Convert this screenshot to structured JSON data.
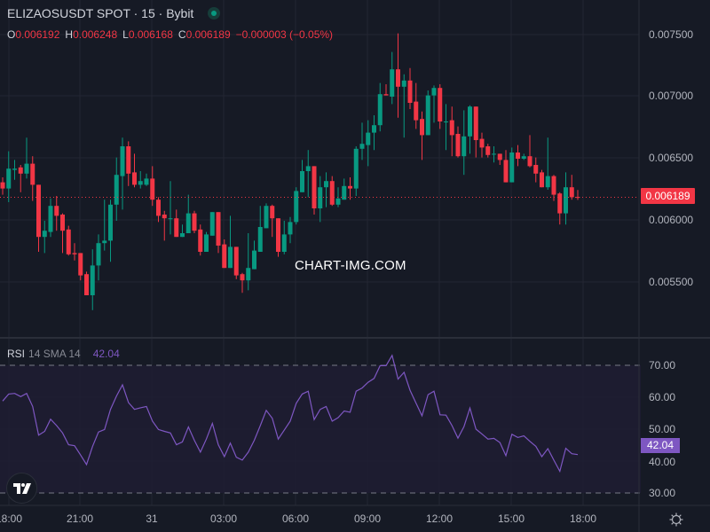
{
  "header": {
    "title": "ELIZAOSUSDT SPOT · 15 · Bybit",
    "status": "market-open",
    "ohlc": {
      "o_label": "O",
      "o": "0.006192",
      "h_label": "H",
      "h": "0.006248",
      "l_label": "L",
      "l": "0.006168",
      "c_label": "C",
      "c": "0.006189",
      "change": "−0.000003 (−0.05%)"
    }
  },
  "watermark": "CHART-IMG.COM",
  "price_axis": {
    "ticks": [
      "0.007500",
      "0.007000",
      "0.006500",
      "0.006000",
      "0.005500"
    ],
    "last_price": "0.006189"
  },
  "rsi": {
    "name": "RSI",
    "params": "14 SMA 14",
    "value": "42.04",
    "ticks": [
      "70.00",
      "60.00",
      "50.00",
      "40.00",
      "30.00"
    ]
  },
  "time_axis": {
    "ticks": [
      "18:00",
      "21:00",
      "31",
      "03:00",
      "06:00",
      "09:00",
      "12:00",
      "15:00",
      "18:00"
    ]
  },
  "colors": {
    "up": "#089981",
    "down": "#f23645",
    "rsi_line": "#7e57c2",
    "background": "#161a25"
  },
  "icons": {
    "logo": "tradingview-logo",
    "settings": "gear-icon"
  },
  "chart_data": [
    {
      "type": "candlestick",
      "title": "ELIZAOSUSDT SPOT · 15 · Bybit",
      "ylim": [
        0.0053,
        0.0077
      ],
      "candles_ohlc": [
        [
          0.00631,
          0.00635,
          0.00621,
          0.00626
        ],
        [
          0.00626,
          0.00656,
          0.00615,
          0.00642
        ],
        [
          0.00641,
          0.00649,
          0.00633,
          0.00642
        ],
        [
          0.00643,
          0.00645,
          0.00623,
          0.00638
        ],
        [
          0.00638,
          0.00667,
          0.00634,
          0.00646
        ],
        [
          0.00646,
          0.00652,
          0.00616,
          0.00629
        ],
        [
          0.00629,
          0.00629,
          0.00575,
          0.00587
        ],
        [
          0.00587,
          0.006,
          0.00574,
          0.00592
        ],
        [
          0.00591,
          0.00618,
          0.00587,
          0.00612
        ],
        [
          0.00612,
          0.0062,
          0.00592,
          0.00604
        ],
        [
          0.00605,
          0.00606,
          0.00574,
          0.00592
        ],
        [
          0.00593,
          0.00596,
          0.00572,
          0.00573
        ],
        [
          0.00574,
          0.00582,
          0.00568,
          0.00573
        ],
        [
          0.00574,
          0.00574,
          0.00552,
          0.00556
        ],
        [
          0.00557,
          0.00559,
          0.0054,
          0.0054
        ],
        [
          0.0054,
          0.00577,
          0.00528,
          0.00564
        ],
        [
          0.00564,
          0.00589,
          0.00552,
          0.00582
        ],
        [
          0.00582,
          0.00617,
          0.00576,
          0.00584
        ],
        [
          0.00584,
          0.00617,
          0.00567,
          0.00613
        ],
        [
          0.00613,
          0.00651,
          0.006,
          0.00637
        ],
        [
          0.00636,
          0.00667,
          0.00609,
          0.0066
        ],
        [
          0.0066,
          0.00664,
          0.00628,
          0.00638
        ],
        [
          0.00639,
          0.00654,
          0.00627,
          0.00629
        ],
        [
          0.00629,
          0.0064,
          0.00626,
          0.00632
        ],
        [
          0.00629,
          0.00638,
          0.00628,
          0.00634
        ],
        [
          0.00634,
          0.00644,
          0.00612,
          0.00617
        ],
        [
          0.00617,
          0.00619,
          0.00599,
          0.00604
        ],
        [
          0.00605,
          0.00608,
          0.00584,
          0.00602
        ],
        [
          0.00602,
          0.00632,
          0.00589,
          0.00602
        ],
        [
          0.00602,
          0.00609,
          0.00587,
          0.00587
        ],
        [
          0.00587,
          0.00597,
          0.00587,
          0.0059
        ],
        [
          0.0059,
          0.00621,
          0.0059,
          0.00606
        ],
        [
          0.00606,
          0.00608,
          0.0059,
          0.00592
        ],
        [
          0.00593,
          0.00597,
          0.00572,
          0.00575
        ],
        [
          0.00575,
          0.00591,
          0.00575,
          0.00589
        ],
        [
          0.00588,
          0.00607,
          0.00588,
          0.00607
        ],
        [
          0.00607,
          0.00607,
          0.00574,
          0.0058
        ],
        [
          0.00581,
          0.00585,
          0.00562,
          0.00562
        ],
        [
          0.00562,
          0.00604,
          0.00562,
          0.00579
        ],
        [
          0.00579,
          0.00579,
          0.00553,
          0.00556
        ],
        [
          0.00557,
          0.00558,
          0.00542,
          0.00552
        ],
        [
          0.00552,
          0.0059,
          0.00544,
          0.00562
        ],
        [
          0.00561,
          0.00584,
          0.00561,
          0.00576
        ],
        [
          0.00575,
          0.00612,
          0.00575,
          0.00595
        ],
        [
          0.00594,
          0.00614,
          0.00594,
          0.00612
        ],
        [
          0.00612,
          0.00613,
          0.00587,
          0.00602
        ],
        [
          0.00602,
          0.00602,
          0.00571,
          0.00575
        ],
        [
          0.00575,
          0.006,
          0.00573,
          0.00589
        ],
        [
          0.00589,
          0.00603,
          0.00582,
          0.00599
        ],
        [
          0.00599,
          0.00627,
          0.00597,
          0.00624
        ],
        [
          0.00623,
          0.00649,
          0.00623,
          0.0064
        ],
        [
          0.0064,
          0.00657,
          0.00619,
          0.00644
        ],
        [
          0.00644,
          0.00644,
          0.00605,
          0.0061
        ],
        [
          0.0061,
          0.00636,
          0.00599,
          0.00627
        ],
        [
          0.00627,
          0.00639,
          0.00611,
          0.00632
        ],
        [
          0.00632,
          0.00636,
          0.00612,
          0.00613
        ],
        [
          0.00613,
          0.00627,
          0.00611,
          0.00618
        ],
        [
          0.00617,
          0.00634,
          0.00617,
          0.00628
        ],
        [
          0.00628,
          0.00635,
          0.00617,
          0.00626
        ],
        [
          0.00626,
          0.0066,
          0.0062,
          0.00658
        ],
        [
          0.00658,
          0.00679,
          0.00649,
          0.00662
        ],
        [
          0.00661,
          0.00681,
          0.00644,
          0.00671
        ],
        [
          0.00671,
          0.00685,
          0.00657,
          0.00677
        ],
        [
          0.00677,
          0.00711,
          0.00672,
          0.00702
        ],
        [
          0.00702,
          0.0071,
          0.00701,
          0.00701
        ],
        [
          0.007,
          0.00736,
          0.00694,
          0.00722
        ],
        [
          0.00722,
          0.00751,
          0.00683,
          0.00708
        ],
        [
          0.00708,
          0.00718,
          0.00667,
          0.00713
        ],
        [
          0.00713,
          0.00723,
          0.0069,
          0.00695
        ],
        [
          0.00696,
          0.00711,
          0.00674,
          0.00681
        ],
        [
          0.00682,
          0.00688,
          0.00649,
          0.00669
        ],
        [
          0.00669,
          0.00705,
          0.00669,
          0.00701
        ],
        [
          0.00701,
          0.00709,
          0.00679,
          0.00707
        ],
        [
          0.00707,
          0.0071,
          0.00674,
          0.0068
        ],
        [
          0.0068,
          0.00694,
          0.00657,
          0.0068
        ],
        [
          0.00681,
          0.00692,
          0.00652,
          0.00669
        ],
        [
          0.0067,
          0.00676,
          0.00651,
          0.00652
        ],
        [
          0.00652,
          0.00689,
          0.00637,
          0.00668
        ],
        [
          0.00668,
          0.00693,
          0.00654,
          0.00692
        ],
        [
          0.00692,
          0.00692,
          0.00651,
          0.00665
        ],
        [
          0.00666,
          0.00671,
          0.00651,
          0.00659
        ],
        [
          0.0066,
          0.00662,
          0.00651,
          0.00653
        ],
        [
          0.00654,
          0.0066,
          0.00647,
          0.00654
        ],
        [
          0.00654,
          0.00654,
          0.00645,
          0.00649
        ],
        [
          0.00649,
          0.00657,
          0.00631,
          0.00631
        ],
        [
          0.00631,
          0.00659,
          0.00631,
          0.00655
        ],
        [
          0.00655,
          0.00661,
          0.00644,
          0.0065
        ],
        [
          0.0065,
          0.00654,
          0.00649,
          0.00652
        ],
        [
          0.00652,
          0.00669,
          0.00643,
          0.00644
        ],
        [
          0.00645,
          0.00651,
          0.00631,
          0.00638
        ],
        [
          0.00639,
          0.00641,
          0.00627,
          0.00627
        ],
        [
          0.00627,
          0.00667,
          0.00625,
          0.00636
        ],
        [
          0.00636,
          0.00637,
          0.00616,
          0.00621
        ],
        [
          0.00622,
          0.00623,
          0.00597,
          0.00606
        ],
        [
          0.00606,
          0.00639,
          0.00597,
          0.00627
        ],
        [
          0.00627,
          0.00637,
          0.00617,
          0.00619
        ],
        [
          0.006192,
          0.006248,
          0.006168,
          0.006189
        ]
      ]
    },
    {
      "type": "line",
      "title": "RSI 14 SMA 14",
      "ylim": [
        25,
        75
      ],
      "bands": [
        30,
        70
      ],
      "values": [
        58.8,
        61.0,
        61.2,
        60.2,
        61.2,
        57.1,
        48.1,
        49.3,
        53.1,
        51.1,
        48.8,
        45.1,
        44.8,
        41.9,
        38.9,
        44.6,
        49.1,
        49.9,
        56.2,
        60.4,
        63.9,
        58.3,
        56.2,
        56.7,
        57.1,
        52.5,
        49.9,
        49.3,
        48.8,
        45.1,
        46.0,
        50.7,
        46.5,
        42.8,
        46.9,
        51.8,
        45.1,
        41.4,
        45.6,
        41.2,
        40.3,
        42.8,
        46.5,
        51.1,
        55.9,
        53.4,
        46.9,
        49.7,
        52.5,
        58.1,
        61.0,
        61.9,
        53.0,
        56.2,
        57.1,
        52.5,
        53.6,
        55.7,
        55.3,
        61.9,
        62.9,
        64.7,
        65.9,
        69.9,
        69.9,
        73.1,
        65.7,
        67.8,
        62.2,
        58.1,
        54.2,
        60.8,
        61.9,
        54.5,
        54.4,
        51.1,
        47.2,
        50.8,
        56.6,
        50.0,
        48.5,
        46.9,
        47.1,
        45.8,
        41.7,
        48.4,
        47.4,
        47.9,
        46.2,
        44.6,
        41.4,
        43.9,
        40.3,
        36.8,
        44.0,
        42.3,
        42.04
      ]
    }
  ]
}
